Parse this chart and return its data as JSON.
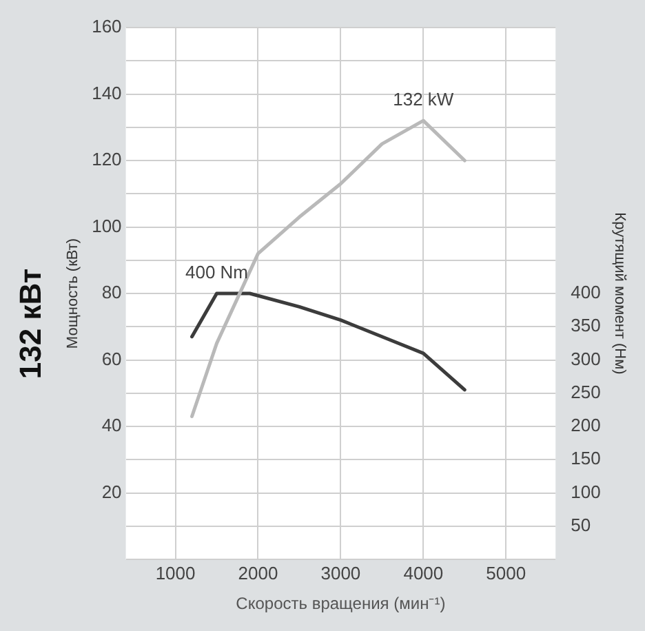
{
  "chart_data": {
    "type": "line",
    "title": "132 кВт",
    "xlabel": "Скорость вращения (мин⁻¹)",
    "ylabel": "Мощность (кВт)",
    "y2label": "Крутящий момент (Нм)",
    "xlim": [
      400,
      5600
    ],
    "xticks": [
      1000,
      2000,
      3000,
      4000,
      5000
    ],
    "ylim": [
      0,
      160
    ],
    "yticks": [
      {
        "value": 0,
        "label": null
      },
      {
        "value": 10,
        "label": null
      },
      20,
      {
        "value": 30,
        "label": null
      },
      40,
      {
        "value": 50,
        "label": null
      },
      60,
      {
        "value": 70,
        "label": null
      },
      80,
      {
        "value": 90,
        "label": null
      },
      100,
      {
        "value": 110,
        "label": null
      },
      120,
      {
        "value": 130,
        "label": null
      },
      140,
      {
        "value": 150,
        "label": null
      },
      160
    ],
    "y2lim": [
      0,
      800
    ],
    "y2ticks": [
      50,
      100,
      150,
      200,
      250,
      300,
      350,
      400
    ],
    "grid": true,
    "legend": false,
    "marker": "none",
    "line_style": "solid",
    "series": [
      {
        "color": "#b9b9b9",
        "x": [
          1200,
          1500,
          2000,
          2500,
          3000,
          3500,
          4000,
          4500
        ],
        "values": [
          43,
          65,
          92,
          103,
          113,
          125,
          132,
          120
        ]
      },
      {
        "color": "#3c3c3c",
        "axis": "y2",
        "x": [
          1200,
          1500,
          1900,
          2500,
          3000,
          3500,
          4000,
          4500
        ],
        "values": [
          335,
          400,
          400,
          380,
          360,
          335,
          310,
          255
        ]
      }
    ],
    "annotations": [
      {
        "text": "400 Nm",
        "x": 1500,
        "y": 80
      },
      {
        "text": "132 kW",
        "x": 4000,
        "y": 132
      }
    ]
  }
}
